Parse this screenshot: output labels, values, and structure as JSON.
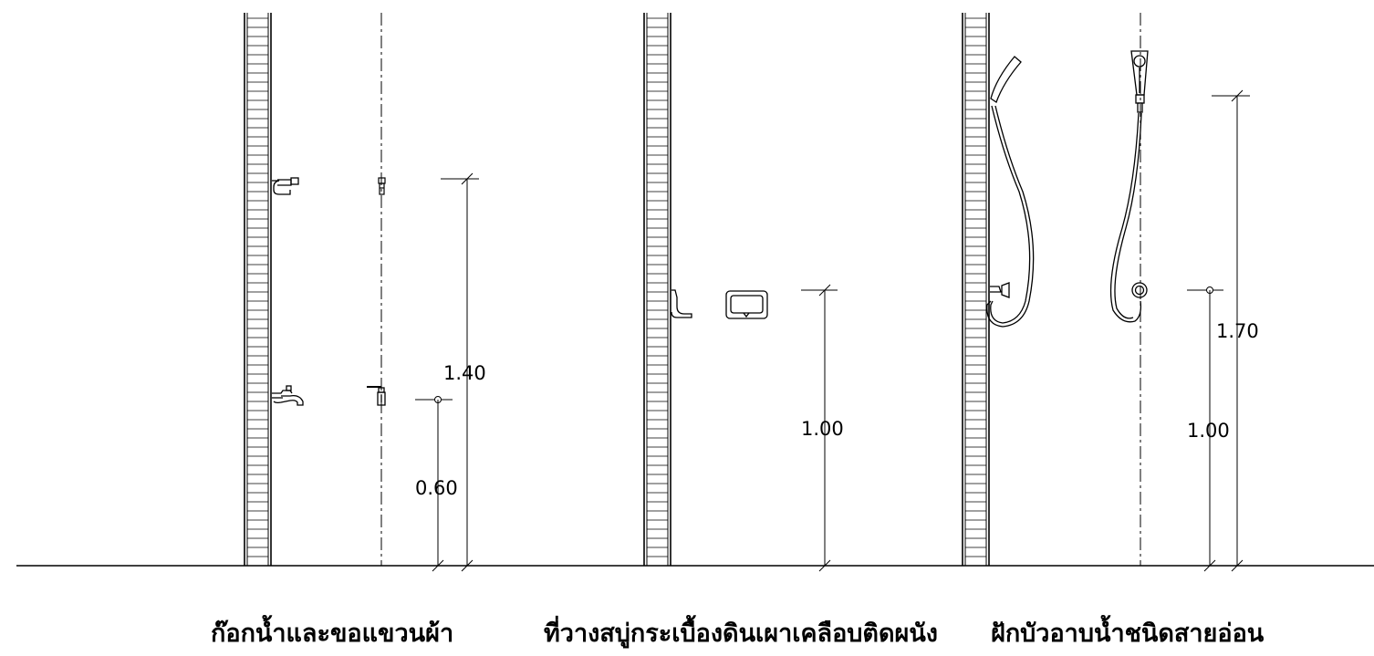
{
  "drawing": {
    "line_color": "#000000",
    "panels": [
      {
        "id": "faucet-towel-hook",
        "caption": "ก๊อกน้ำและขอแขวนผ้า",
        "dimensions": [
          {
            "label": "1.40"
          },
          {
            "label": "0.60"
          }
        ]
      },
      {
        "id": "ceramic-soap-dish",
        "caption": "ที่วางสบู่กระเบื้องดินเผาเคลือบติดผนัง",
        "dimensions": [
          {
            "label": "1.00"
          }
        ]
      },
      {
        "id": "hand-shower",
        "caption": "ฝักบัวอาบน้ำชนิดสายอ่อน",
        "dimensions": [
          {
            "label": "1.70"
          },
          {
            "label": "1.00"
          }
        ]
      }
    ]
  }
}
